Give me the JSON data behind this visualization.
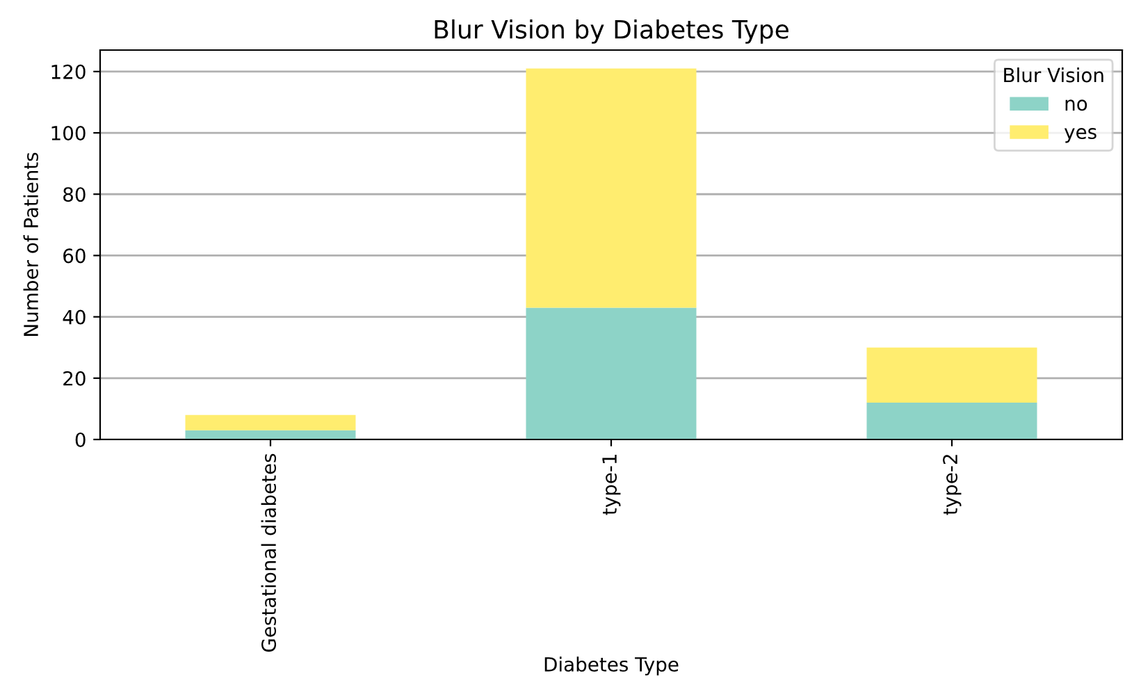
{
  "chart_data": {
    "type": "bar",
    "title": "Blur Vision by Diabetes Type",
    "xlabel": "Diabetes Type",
    "ylabel": "Number of Patients",
    "legend_title": "Blur Vision",
    "categories": [
      "Gestational diabetes",
      "type-1",
      "type-2"
    ],
    "series": [
      {
        "name": "no",
        "color": "#8dd3c7",
        "values": [
          3,
          43,
          12
        ]
      },
      {
        "name": "yes",
        "color": "#ffed6f",
        "values": [
          5,
          78,
          18
        ]
      }
    ],
    "stacked": true,
    "ylim": [
      0,
      127
    ],
    "yticks": [
      0,
      20,
      40,
      60,
      80,
      100,
      120
    ],
    "grid": "y",
    "legend": "top right"
  }
}
